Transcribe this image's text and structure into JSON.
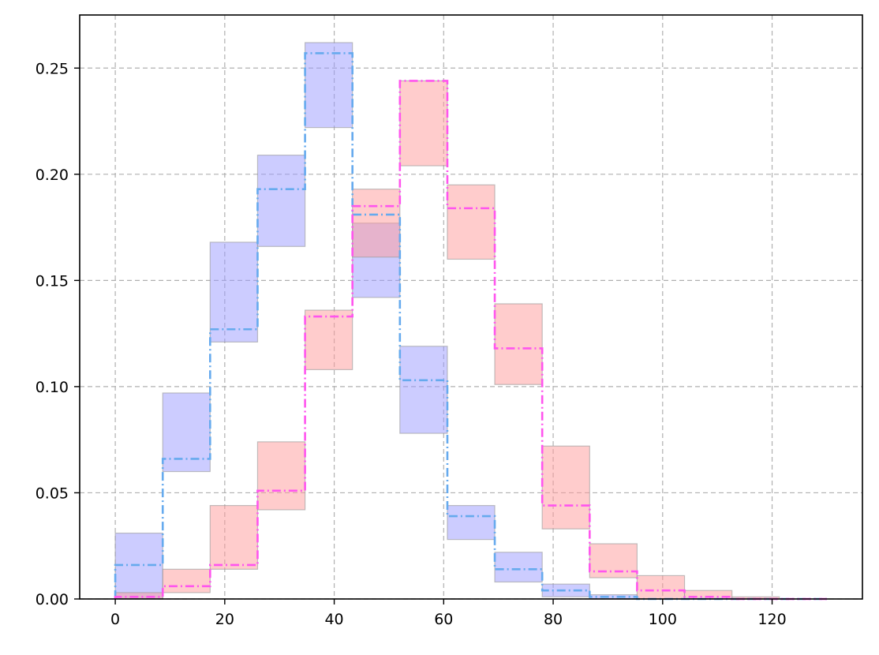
{
  "chart_data": {
    "type": "bar",
    "title": "",
    "xlabel": "",
    "ylabel": "",
    "xlim": [
      -6.5,
      136.5
    ],
    "ylim": [
      0,
      0.275
    ],
    "grid": true,
    "x_ticks": [
      0,
      20,
      40,
      60,
      80,
      100,
      120
    ],
    "y_ticks": [
      0.0,
      0.05,
      0.1,
      0.15,
      0.2,
      0.25
    ],
    "x_tick_labels": [
      "0",
      "20",
      "40",
      "60",
      "80",
      "100",
      "120"
    ],
    "y_tick_labels": [
      "0.00",
      "0.05",
      "0.10",
      "0.15",
      "0.20",
      "0.25"
    ],
    "bin_edges": [
      0,
      8.67,
      17.33,
      26,
      34.67,
      43.33,
      52,
      60.67,
      69.33,
      78,
      86.67,
      95.33,
      104,
      112.67,
      121.33,
      130
    ],
    "series": [
      {
        "color": "#66aaee",
        "band_color": "#9999ff",
        "values": [
          0.016,
          0.066,
          0.127,
          0.193,
          0.257,
          0.181,
          0.103,
          0.039,
          0.014,
          0.004,
          0.001,
          0.0,
          0.0,
          0.0,
          0.0
        ],
        "lower": [
          0.0,
          0.06,
          0.121,
          0.166,
          0.222,
          0.142,
          0.078,
          0.028,
          0.008,
          0.001,
          0.0,
          0.0,
          0.0,
          0.0,
          0.0
        ],
        "upper": [
          0.031,
          0.097,
          0.168,
          0.209,
          0.262,
          0.177,
          0.119,
          0.044,
          0.022,
          0.007,
          0.002,
          0.0,
          0.0,
          0.0,
          0.0
        ]
      },
      {
        "color": "#ff55ee",
        "band_color": "#ff9999",
        "values": [
          0.001,
          0.006,
          0.016,
          0.051,
          0.133,
          0.185,
          0.244,
          0.184,
          0.118,
          0.044,
          0.013,
          0.004,
          0.001,
          0.0,
          0.0
        ],
        "lower": [
          0.0,
          0.003,
          0.014,
          0.042,
          0.108,
          0.161,
          0.204,
          0.16,
          0.101,
          0.033,
          0.01,
          0.0,
          0.0,
          0.0,
          0.0
        ],
        "upper": [
          0.003,
          0.014,
          0.044,
          0.074,
          0.136,
          0.193,
          0.244,
          0.195,
          0.139,
          0.072,
          0.026,
          0.011,
          0.004,
          0.001,
          0.0
        ]
      }
    ]
  }
}
